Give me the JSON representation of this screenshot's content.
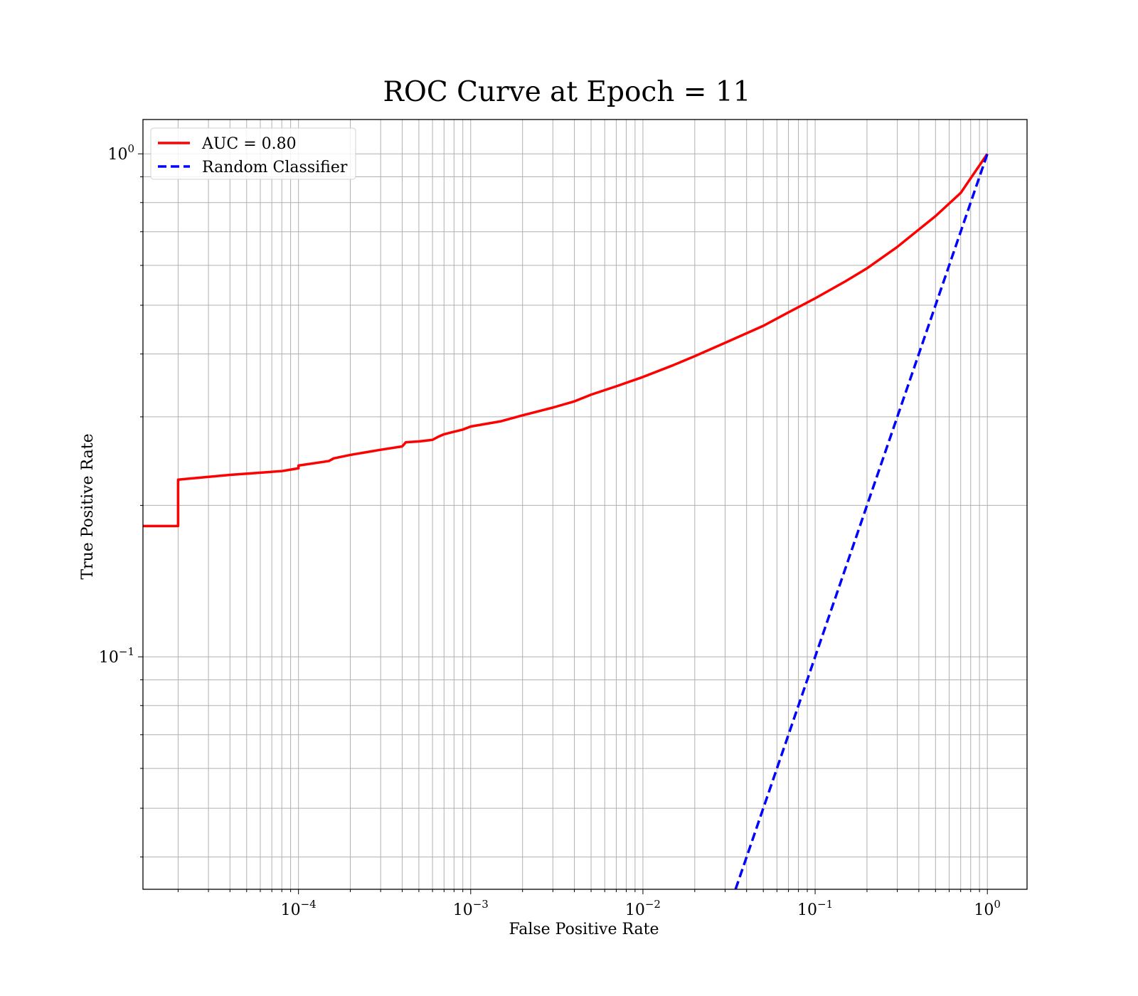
{
  "chart_data": {
    "type": "line",
    "title": "ROC Curve at Epoch = 11",
    "xlabel": "False Positive Rate",
    "ylabel": "True Positive Rate",
    "xscale": "log",
    "yscale": "log",
    "xlim": [
      1.25e-05,
      1.7
    ],
    "ylim": [
      0.0345,
      1.17
    ],
    "grid": true,
    "legend_position": "top-left",
    "x_ticks": [
      {
        "base": "10",
        "exp": "−4"
      },
      {
        "base": "10",
        "exp": "−3"
      },
      {
        "base": "10",
        "exp": "−2"
      },
      {
        "base": "10",
        "exp": "−1"
      },
      {
        "base": "10",
        "exp": "0"
      }
    ],
    "y_ticks": [
      {
        "base": "10",
        "exp": "−1"
      },
      {
        "base": "10",
        "exp": "0"
      }
    ],
    "series": [
      {
        "name": "AUC = 0.80",
        "color": "#ff0000",
        "style": "solid",
        "x": [
          1.25e-05,
          2e-05,
          2e-05,
          4e-05,
          8e-05,
          0.0001,
          0.0001,
          0.00015,
          0.00016,
          0.0002,
          0.0003,
          0.0004,
          0.00042,
          0.0005,
          0.0006,
          0.00065,
          0.0007,
          0.0009,
          0.001,
          0.0015,
          0.002,
          0.003,
          0.004,
          0.005,
          0.007,
          0.01,
          0.015,
          0.02,
          0.03,
          0.05,
          0.07,
          0.1,
          0.15,
          0.2,
          0.3,
          0.5,
          0.7,
          1.0
        ],
        "y": [
          0.182,
          0.182,
          0.225,
          0.23,
          0.234,
          0.237,
          0.24,
          0.245,
          0.248,
          0.252,
          0.258,
          0.262,
          0.267,
          0.268,
          0.27,
          0.274,
          0.277,
          0.283,
          0.287,
          0.294,
          0.302,
          0.313,
          0.322,
          0.332,
          0.345,
          0.36,
          0.38,
          0.396,
          0.421,
          0.455,
          0.484,
          0.516,
          0.558,
          0.592,
          0.653,
          0.752,
          0.836,
          1.0
        ]
      },
      {
        "name": "Random Classifier",
        "color": "#0000ff",
        "style": "dashed",
        "x": [
          0.0345,
          1.0
        ],
        "y": [
          0.0345,
          1.0
        ]
      }
    ]
  }
}
